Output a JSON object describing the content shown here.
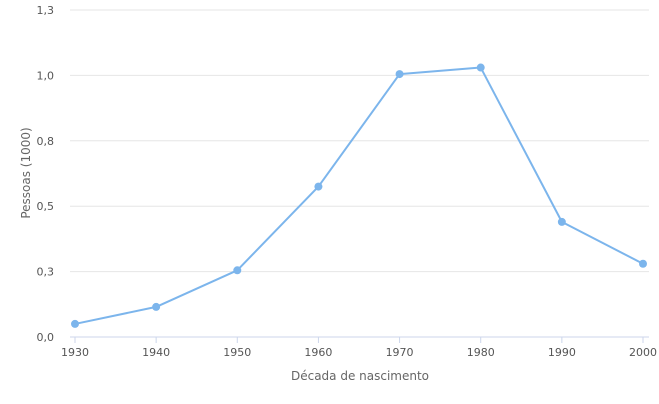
{
  "chart_data": {
    "type": "line",
    "xlabel": "Década de nascimento",
    "ylabel": "Pessoas (1000)",
    "x": [
      1930,
      1940,
      1950,
      1960,
      1970,
      1980,
      1990,
      2000
    ],
    "series": [
      {
        "values": [
          0.05,
          0.115,
          0.255,
          0.575,
          1.005,
          1.03,
          0.44,
          0.28
        ]
      }
    ],
    "x_ticks": [
      {
        "value": 1930,
        "label": "1930"
      },
      {
        "value": 1940,
        "label": "1940"
      },
      {
        "value": 1950,
        "label": "1950"
      },
      {
        "value": 1960,
        "label": "1960"
      },
      {
        "value": 1970,
        "label": "1970"
      },
      {
        "value": 1980,
        "label": "1980"
      },
      {
        "value": 1990,
        "label": "1990"
      },
      {
        "value": 2000,
        "label": "2000"
      }
    ],
    "y_ticks": [
      {
        "value": 0,
        "label": "0,0"
      },
      {
        "value": 0.25,
        "label": "0,3"
      },
      {
        "value": 0.5,
        "label": "0,5"
      },
      {
        "value": 0.75,
        "label": "0,8"
      },
      {
        "value": 1.0,
        "label": "1,0"
      },
      {
        "value": 1.25,
        "label": "1,3"
      }
    ],
    "xlim": [
      1930,
      2000
    ],
    "ylim": [
      0,
      1.25
    ],
    "grid": "horizontal",
    "legend": "none",
    "colors": {
      "line": "#7cb5ec",
      "grid": "#e6e6e6",
      "axis": "#ccd6eb"
    }
  }
}
